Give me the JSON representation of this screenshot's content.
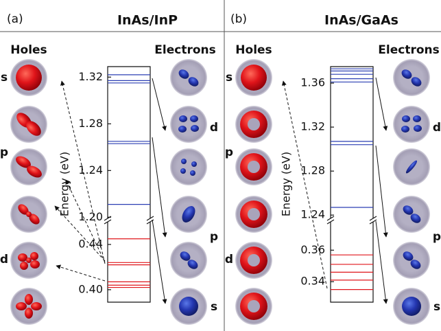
{
  "panels": [
    {
      "tag": "(a)",
      "title": "InAs/InP",
      "holes_label": "Holes",
      "electrons_label": "Electrons",
      "y_label": "Energy (eV)",
      "upper": {
        "ylim": [
          1.199,
          1.329
        ],
        "yticks": [
          1.32,
          1.28,
          1.24,
          {
            "value": 1.2,
            "label": "1.20"
          }
        ],
        "electron_levels": [
          1.322,
          1.317,
          1.315,
          1.265,
          1.263,
          1.211
        ]
      },
      "lower": {
        "ylim": [
          0.389,
          0.46
        ],
        "yticks": [
          0.44,
          {
            "value": 0.4,
            "label": "0.40"
          }
        ],
        "hole_levels": [
          0.445,
          0.424,
          0.422,
          0.407,
          0.404,
          0.402
        ]
      },
      "hole_states": [
        "s",
        "p",
        "d"
      ],
      "electron_states": [
        "d",
        "p",
        "s"
      ]
    },
    {
      "tag": "(b)",
      "title": "InAs/GaAs",
      "holes_label": "Holes",
      "electrons_label": "Electrons",
      "y_label": "Energy (eV)",
      "upper": {
        "ylim": [
          1.237,
          1.375
        ],
        "yticks": [
          1.36,
          1.32,
          1.28,
          1.24
        ],
        "electron_levels": [
          1.373,
          1.371,
          1.368,
          1.364,
          1.361,
          1.307,
          1.304,
          1.247
        ]
      },
      "lower": {
        "ylim": [
          0.327,
          0.378
        ],
        "yticks": [
          0.36,
          0.34
        ],
        "hole_levels": [
          0.357,
          0.351,
          0.346,
          0.341,
          0.335
        ]
      },
      "hole_states": [
        "s",
        "p",
        "d"
      ],
      "electron_states": [
        "d",
        "p",
        "s"
      ]
    }
  ]
}
